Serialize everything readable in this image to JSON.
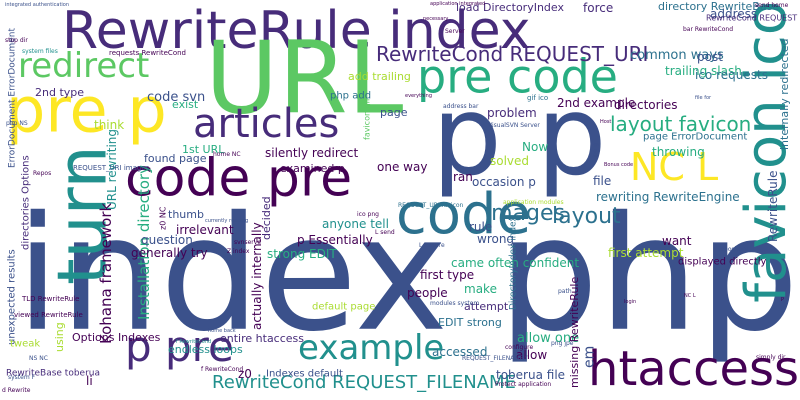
{
  "colors": {
    "background": "#ffffff",
    "palette": [
      "#440154",
      "#472c7a",
      "#3b518b",
      "#2c718e",
      "#21908d",
      "#27ad81",
      "#5cc863",
      "#aadc32",
      "#fde725"
    ]
  },
  "words": [
    {
      "text": "index php",
      "color": "#3b518b"
    },
    {
      "text": "RewriteRule index",
      "color": "#472c7a"
    },
    {
      "text": "URL",
      "color": "#5cc863"
    },
    {
      "text": "p p",
      "color": "#3b518b"
    },
    {
      "text": "pre code",
      "color": "#27ad81"
    },
    {
      "text": "favicon ico",
      "color": "#21908d"
    },
    {
      "text": "code pre",
      "color": "#440154"
    },
    {
      "text": "pre p",
      "color": "#fde725"
    },
    {
      "text": "articles",
      "color": "#472c7a"
    },
    {
      "text": "turn",
      "color": "#21908d"
    },
    {
      "text": "code",
      "color": "#2c718e"
    },
    {
      "text": "htaccess",
      "color": "#440154"
    },
    {
      "text": "p pre",
      "color": "#472c7a"
    },
    {
      "text": "example",
      "color": "#21908d"
    },
    {
      "text": "redirect",
      "color": "#5cc863"
    },
    {
      "text": "NC L",
      "color": "#fde725"
    },
    {
      "text": "layout favicon",
      "color": "#27ad81"
    },
    {
      "text": "RewriteCond REQUEST_URI",
      "color": "#472c7a"
    },
    {
      "text": "images",
      "color": "#2c718e"
    },
    {
      "text": "layout",
      "color": "#2c718e"
    },
    {
      "text": "RewriteCond REQUEST_FILENAME",
      "color": "#21908d"
    },
    {
      "text": "Kohana framework",
      "color": "#440154"
    },
    {
      "text": "Installation directory",
      "color": "#27ad81"
    },
    {
      "text": "directory RewriteBase",
      "color": "#2c718e"
    },
    {
      "text": "load DirectoryIndex",
      "color": "#472c7a"
    },
    {
      "text": "force",
      "color": "#472c7a"
    },
    {
      "text": "address",
      "color": "#3b518b"
    },
    {
      "text": "common ways",
      "color": "#2c718e"
    },
    {
      "text": "trailing slash",
      "color": "#27ad81"
    },
    {
      "text": "RewriteCond REQUEST",
      "color": "#472c7a"
    },
    {
      "text": "post",
      "color": "#3b518b"
    },
    {
      "text": "ico requests",
      "color": "#2c718e"
    },
    {
      "text": "add trailing",
      "color": "#aadc32"
    },
    {
      "text": "2nd type",
      "color": "#472c7a"
    },
    {
      "text": "think",
      "color": "#aadc32"
    },
    {
      "text": "code svn",
      "color": "#3b518b"
    },
    {
      "text": "php add",
      "color": "#2c718e"
    },
    {
      "text": "exist",
      "color": "#27ad81"
    },
    {
      "text": "problem",
      "color": "#472c7a"
    },
    {
      "text": "2nd example",
      "color": "#440154"
    },
    {
      "text": "directories",
      "color": "#440154"
    },
    {
      "text": "page",
      "color": "#3b518b"
    },
    {
      "text": "Now",
      "color": "#27ad81"
    },
    {
      "text": "solved",
      "color": "#aadc32"
    },
    {
      "text": "examined p",
      "color": "#440154"
    },
    {
      "text": "silently redirect",
      "color": "#440154"
    },
    {
      "text": "one way",
      "color": "#440154"
    },
    {
      "text": "ran",
      "color": "#440154"
    },
    {
      "text": "occasion p",
      "color": "#3b518b"
    },
    {
      "text": "file",
      "color": "#3b518b"
    },
    {
      "text": "rewriting RewriteEngine",
      "color": "#2c718e"
    },
    {
      "text": "throwing",
      "color": "#27ad81"
    },
    {
      "text": "page ErrorDocument",
      "color": "#2c718e"
    },
    {
      "text": "found page",
      "color": "#3b518b"
    },
    {
      "text": "1st URL",
      "color": "#27ad81"
    },
    {
      "text": "URL rewriting",
      "color": "#21908d"
    },
    {
      "text": "thumb",
      "color": "#3b518b"
    },
    {
      "text": "irrelevant",
      "color": "#440154"
    },
    {
      "text": "question",
      "color": "#3b518b"
    },
    {
      "text": "generally try",
      "color": "#440154"
    },
    {
      "text": "anyone tell",
      "color": "#21908d"
    },
    {
      "text": "p Essentially",
      "color": "#440154"
    },
    {
      "text": "strong EDIT",
      "color": "#27ad81"
    },
    {
      "text": "decided",
      "color": "#472c7a"
    },
    {
      "text": "actually internally",
      "color": "#440154"
    },
    {
      "text": "rule",
      "color": "#3b518b"
    },
    {
      "text": "came often confident",
      "color": "#27ad81"
    },
    {
      "text": "wrong",
      "color": "#3b518b"
    },
    {
      "text": "first type",
      "color": "#440154"
    },
    {
      "text": "make",
      "color": "#27ad81"
    },
    {
      "text": "attempt",
      "color": "#472c7a"
    },
    {
      "text": "EDIT strong",
      "color": "#2c718e"
    },
    {
      "text": "people",
      "color": "#440154"
    },
    {
      "text": "accessed",
      "color": "#2c718e"
    },
    {
      "text": "allow one",
      "color": "#27ad81"
    },
    {
      "text": "allow",
      "color": "#440154"
    },
    {
      "text": "want",
      "color": "#440154"
    },
    {
      "text": "first attempt",
      "color": "#aadc32"
    },
    {
      "text": "displayed directly",
      "color": "#440154"
    },
    {
      "text": "internally redirected",
      "color": "#2c718e"
    },
    {
      "text": "RewriteRule",
      "color": "#3b518b"
    },
    {
      "text": "em",
      "color": "#3b518b"
    },
    {
      "text": "missing RewriteRule",
      "color": "#440154"
    },
    {
      "text": "toberua file",
      "color": "#3b518b"
    },
    {
      "text": "Options Indexes",
      "color": "#440154"
    },
    {
      "text": "endless loops",
      "color": "#21908d"
    },
    {
      "text": "entire htaccess",
      "color": "#472c7a"
    },
    {
      "text": "default page",
      "color": "#aadc32"
    },
    {
      "text": "Indexes default",
      "color": "#3b518b"
    },
    {
      "text": "z0",
      "color": "#440154"
    },
    {
      "text": "unexpected results",
      "color": "#3b518b"
    },
    {
      "text": "directories Options",
      "color": "#472c7a"
    },
    {
      "text": "ErrorDocument ErrorDocument",
      "color": "#3b518b"
    },
    {
      "text": "TLD RewriteRule",
      "color": "#440154"
    },
    {
      "text": "viewed RewriteRule",
      "color": "#440154"
    },
    {
      "text": "RewriteBase toberua",
      "color": "#472c7a"
    },
    {
      "text": "tweak",
      "color": "#aadc32"
    },
    {
      "text": "li",
      "color": "#440154"
    },
    {
      "text": "using",
      "color": "#aadc32"
    },
    {
      "text": "z0 NC",
      "color": "#440154"
    },
    {
      "text": "DirectoryIndex index",
      "color": "#2c718e"
    },
    {
      "text": "Protect application",
      "color": "#440154"
    },
    {
      "text": "favicon gif",
      "color": "#5cc863"
    },
    {
      "text": "gif ico",
      "color": "#2c718e"
    },
    {
      "text": "VisualSVN Server",
      "color": "#3b518b"
    },
    {
      "text": "application modules",
      "color": "#aadc32"
    },
    {
      "text": "REQUEST_URI favicon",
      "color": "#2c718e"
    },
    {
      "text": "REQUEST_FILENAME f",
      "color": "#3b518b"
    },
    {
      "text": "REQUEST_URI images",
      "color": "#3b518b"
    },
    {
      "text": "requests RewriteCond",
      "color": "#440154"
    },
    {
      "text": "system files",
      "color": "#21908d"
    },
    {
      "text": "stop dir",
      "color": "#440154"
    },
    {
      "text": "send home",
      "color": "#440154"
    },
    {
      "text": "bar RewriteCond",
      "color": "#440154"
    },
    {
      "text": "address bar",
      "color": "#3b518b"
    },
    {
      "text": "ico png",
      "color": "#440154"
    },
    {
      "text": "png jpe",
      "color": "#3b518b"
    },
    {
      "text": "simply dir",
      "color": "#440154"
    },
    {
      "text": "modules system",
      "color": "#3b518b"
    },
    {
      "text": "d Rewrite",
      "color": "#440154"
    },
    {
      "text": "system F",
      "color": "#3b518b"
    },
    {
      "text": "php NS",
      "color": "#3b518b"
    },
    {
      "text": "repository",
      "color": "#3b518b"
    },
    {
      "text": "svnserve",
      "color": "#440154"
    },
    {
      "text": "Repos",
      "color": "#440154"
    },
    {
      "text": "home NC",
      "color": "#440154"
    },
    {
      "text": "L ensure",
      "color": "#3b518b"
    },
    {
      "text": "Z index",
      "color": "#440154"
    },
    {
      "text": "f RewriteCond",
      "color": "#440154"
    },
    {
      "text": "NS NC",
      "color": "#3b518b"
    },
    {
      "text": "path",
      "color": "#3b518b"
    },
    {
      "text": "configure",
      "color": "#440154"
    },
    {
      "text": "L send",
      "color": "#440154"
    },
    {
      "text": "Server",
      "color": "#440154"
    },
    {
      "text": "jpe g",
      "color": "#3b518b"
    },
    {
      "text": "currently running",
      "color": "#3b518b"
    },
    {
      "text": "integrated authentication",
      "color": "#3b518b"
    },
    {
      "text": "f RewriteCond",
      "color": "#21908d"
    },
    {
      "text": "application integrated",
      "color": "#440154"
    },
    {
      "text": "everything",
      "color": "#440154"
    },
    {
      "text": "necessary",
      "color": "#440154"
    },
    {
      "text": "file for",
      "color": "#3b518b"
    },
    {
      "text": "Bonus code",
      "color": "#440154"
    },
    {
      "text": "home back",
      "color": "#3b518b"
    },
    {
      "text": "login",
      "color": "#440154"
    },
    {
      "text": "NC L",
      "color": "#440154"
    },
    {
      "text": "Host",
      "color": "#440154"
    },
    {
      "text": "P",
      "color": "#440154"
    }
  ]
}
